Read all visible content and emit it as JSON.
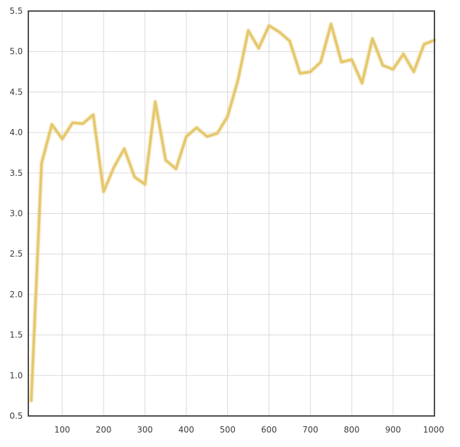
{
  "chart_data": {
    "type": "line",
    "title": "",
    "xlabel": "",
    "ylabel": "",
    "xlim": [
      18,
      1000
    ],
    "ylim": [
      0.5,
      5.5
    ],
    "x_ticks": [
      100,
      200,
      300,
      400,
      500,
      600,
      700,
      800,
      900,
      1000
    ],
    "x_tick_labels": [
      "100",
      "200",
      "300",
      "400",
      "500",
      "600",
      "700",
      "800",
      "900",
      "1000"
    ],
    "y_ticks": [
      0.5,
      1.0,
      1.5,
      2.0,
      2.5,
      3.0,
      3.5,
      4.0,
      4.5,
      5.0,
      5.5
    ],
    "y_tick_labels": [
      "0.5",
      "1.0",
      "1.5",
      "2.0",
      "2.5",
      "3.0",
      "3.5",
      "4.0",
      "4.5",
      "5.0",
      "5.5"
    ],
    "grid": true,
    "series": [
      {
        "color": "#e5c76b",
        "points": [
          [
            25,
            0.69
          ],
          [
            50,
            3.62
          ],
          [
            75,
            4.1
          ],
          [
            100,
            3.92
          ],
          [
            125,
            4.12
          ],
          [
            150,
            4.11
          ],
          [
            175,
            4.22
          ],
          [
            200,
            3.27
          ],
          [
            225,
            3.57
          ],
          [
            250,
            3.8
          ],
          [
            275,
            3.45
          ],
          [
            300,
            3.36
          ],
          [
            325,
            4.38
          ],
          [
            350,
            3.66
          ],
          [
            375,
            3.55
          ],
          [
            400,
            3.95
          ],
          [
            425,
            4.06
          ],
          [
            450,
            3.95
          ],
          [
            475,
            3.99
          ],
          [
            500,
            4.2
          ],
          [
            525,
            4.65
          ],
          [
            550,
            5.26
          ],
          [
            575,
            5.04
          ],
          [
            600,
            5.32
          ],
          [
            625,
            5.24
          ],
          [
            650,
            5.13
          ],
          [
            675,
            4.73
          ],
          [
            700,
            4.75
          ],
          [
            725,
            4.87
          ],
          [
            750,
            5.34
          ],
          [
            775,
            4.87
          ],
          [
            800,
            4.9
          ],
          [
            825,
            4.61
          ],
          [
            850,
            5.16
          ],
          [
            875,
            4.83
          ],
          [
            900,
            4.78
          ],
          [
            925,
            4.97
          ],
          [
            950,
            4.75
          ],
          [
            975,
            5.09
          ],
          [
            1000,
            5.14
          ]
        ]
      }
    ]
  }
}
